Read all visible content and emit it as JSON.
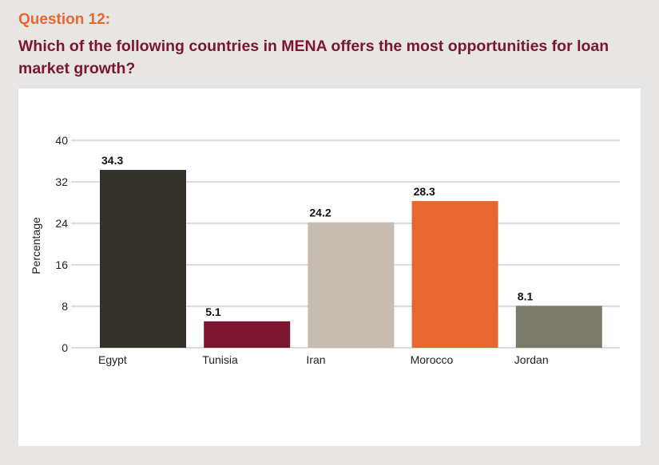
{
  "question": {
    "number": "Question 12:",
    "text": "Which of the following countries in MENA offers the most opportunities for loan market growth?"
  },
  "colors": {
    "question_number": "#e8672f",
    "question_text": "#7c1530",
    "background": "#e8e6e4",
    "panel": "#ffffff",
    "grid": "#b8b8b8"
  },
  "chart_data": {
    "type": "bar",
    "title": "",
    "xlabel": "",
    "ylabel": "Percentage",
    "categories": [
      "Egypt",
      "Tunisia",
      "Iran",
      "Morocco",
      "Jordan"
    ],
    "values": [
      34.3,
      5.1,
      24.2,
      28.3,
      8.1
    ],
    "value_labels": [
      "34.3",
      "5.1",
      "24.2",
      "28.3",
      "8.1"
    ],
    "bar_colors": [
      "#33312a",
      "#7c1530",
      "#c6bcb1",
      "#e8672f",
      "#7a7a6c"
    ],
    "ylim": [
      0,
      40
    ],
    "yticks": [
      0,
      8,
      16,
      24,
      32,
      40
    ],
    "ytick_labels": [
      "0",
      "8",
      "16",
      "24",
      "32",
      "40"
    ],
    "grid": true,
    "legend": "none"
  }
}
